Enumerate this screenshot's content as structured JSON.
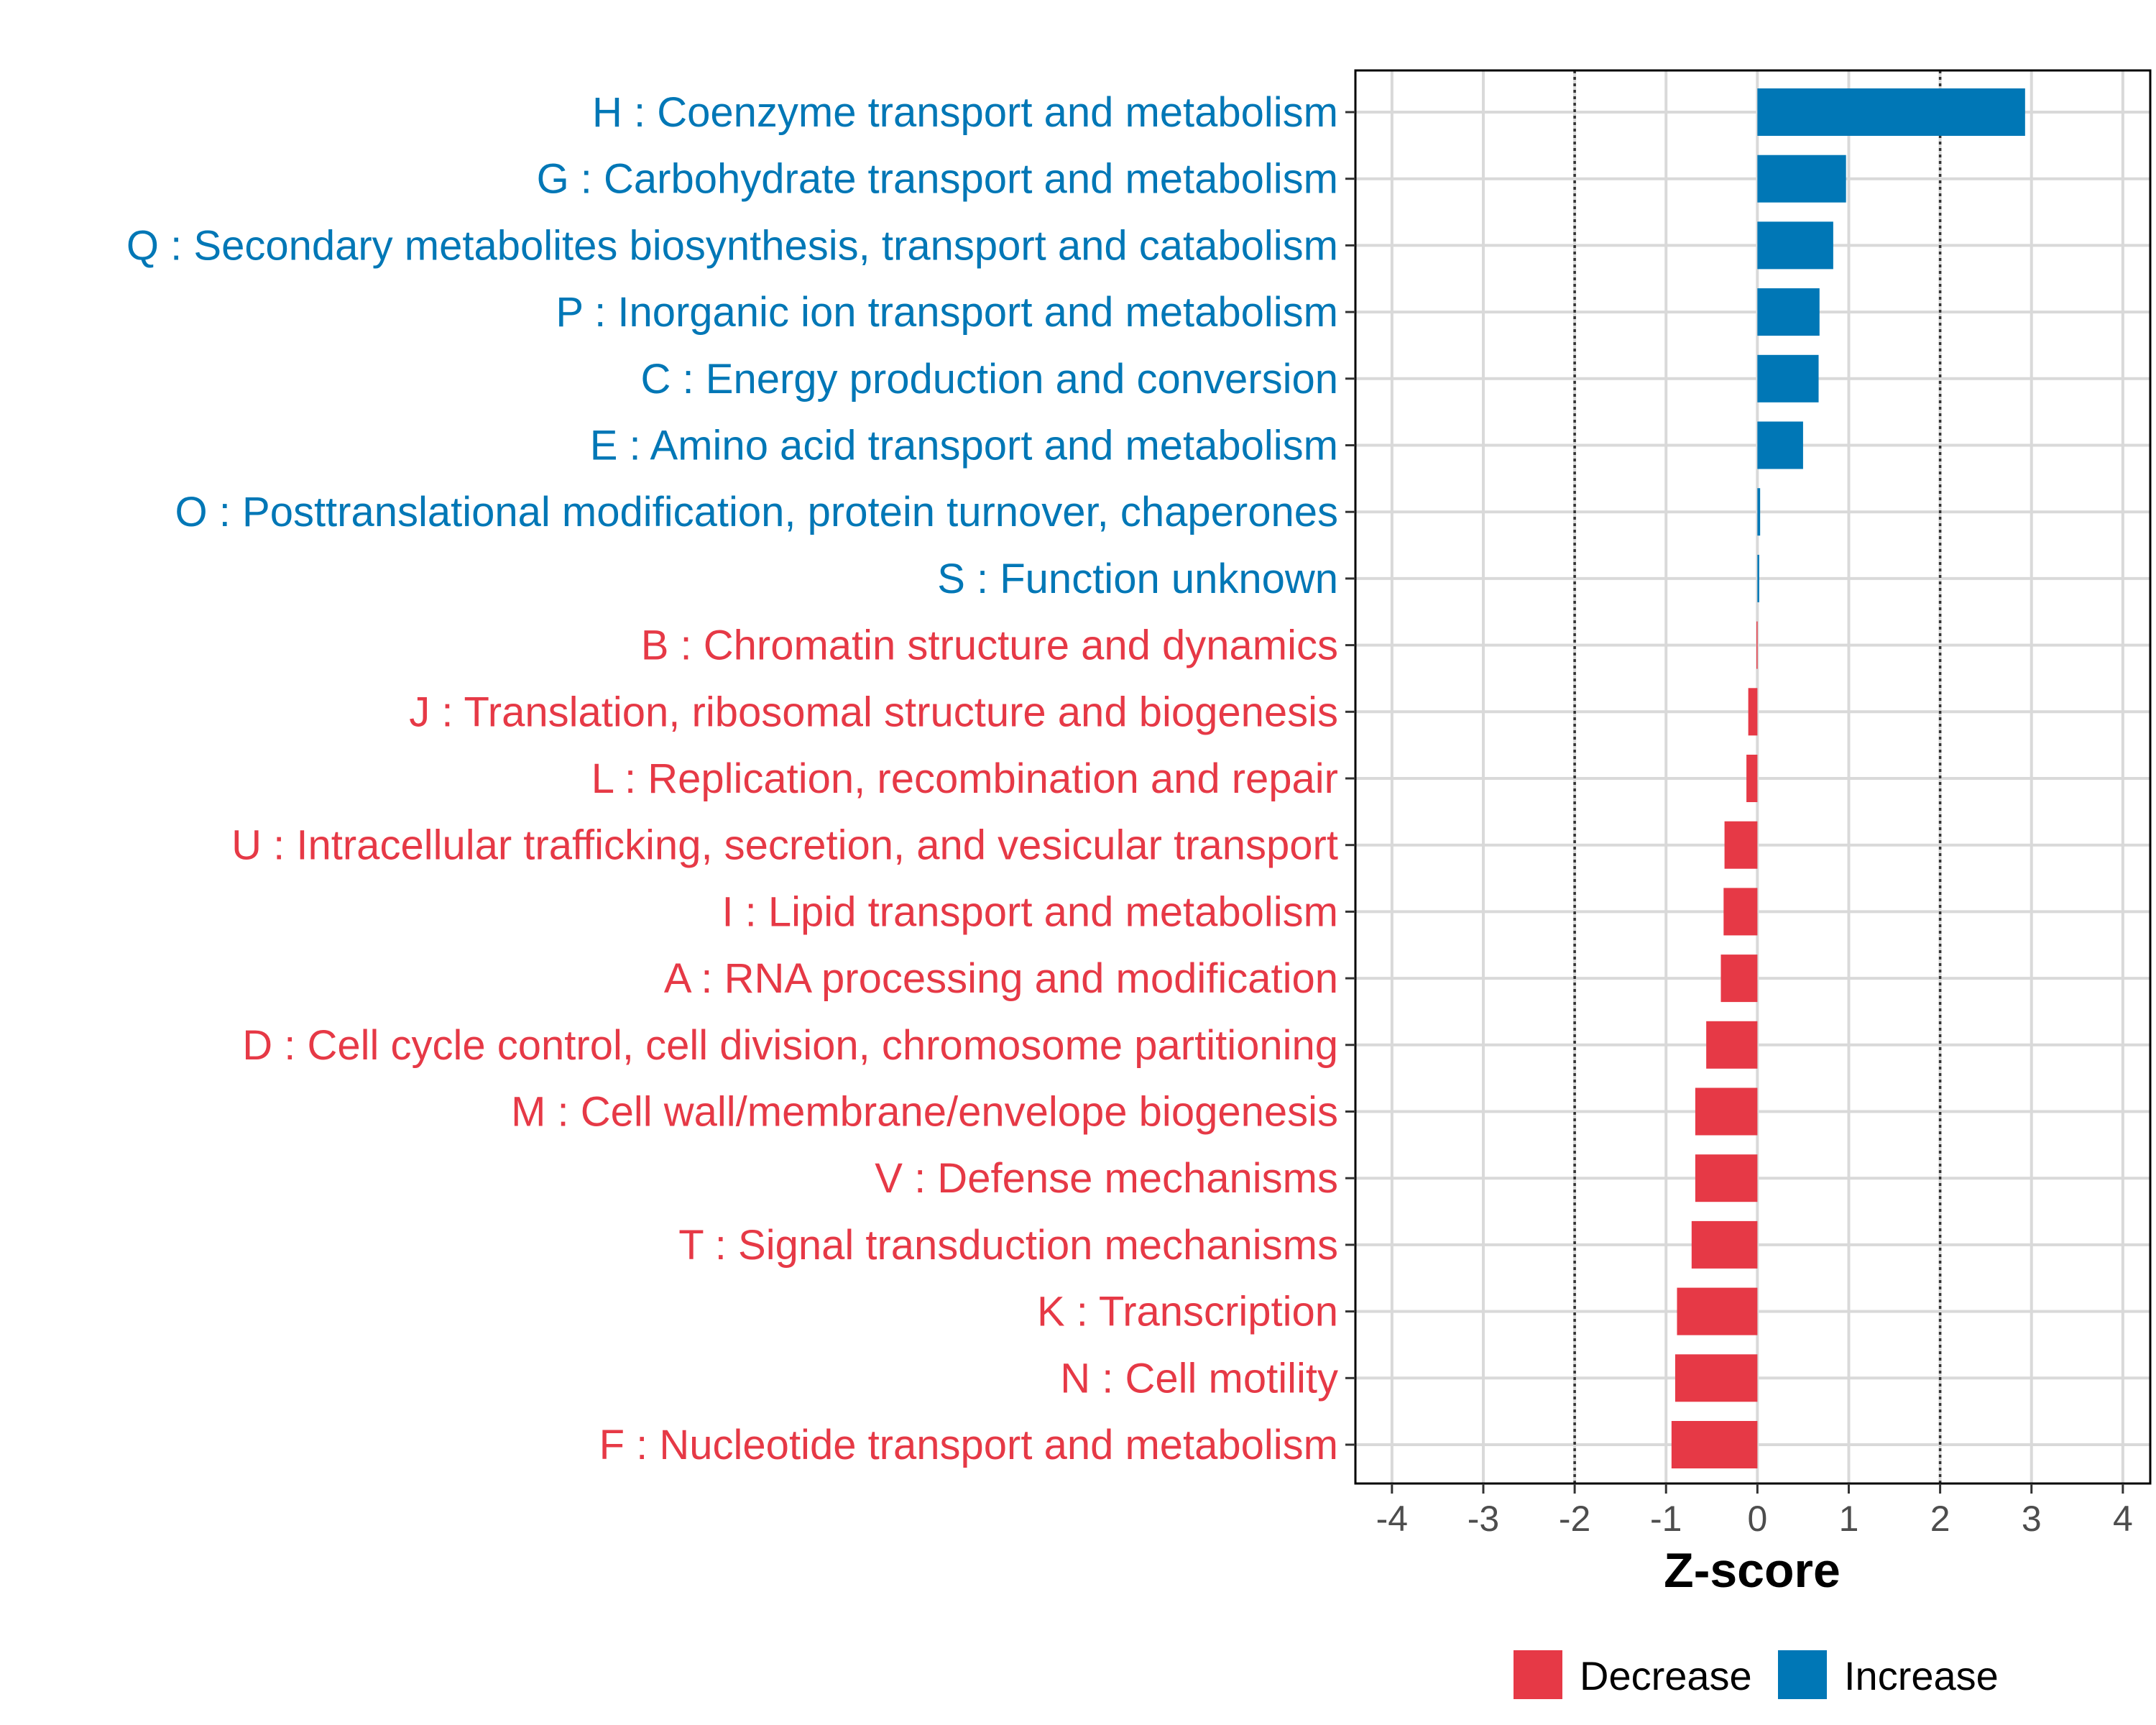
{
  "chart_data": {
    "type": "bar",
    "orientation": "horizontal",
    "title": "",
    "xlabel": "Z-score",
    "ylabel": "",
    "xlim": [
      -4.4,
      4.3
    ],
    "xticks": [
      -4,
      -3,
      -2,
      -1,
      0,
      1,
      2,
      3,
      4
    ],
    "xtick_labels": [
      "-4",
      "-3",
      "-2",
      "-1",
      "0",
      "1",
      "2",
      "3",
      "4"
    ],
    "reference_lines": [
      -2,
      2
    ],
    "grid": true,
    "legend_position": "bottom",
    "colors": {
      "Decrease": "#e63946",
      "Increase": "#0077b6"
    },
    "legend": [
      {
        "name": "Decrease",
        "color": "#e63946"
      },
      {
        "name": "Increase",
        "color": "#0077b6"
      }
    ],
    "categories": [
      "H : Coenzyme transport and metabolism",
      "G : Carbohydrate transport and metabolism",
      "Q : Secondary metabolites biosynthesis, transport and catabolism",
      "P : Inorganic ion transport and metabolism",
      "C : Energy production and conversion",
      "E : Amino acid transport and metabolism",
      "O : Posttranslational modification, protein turnover, chaperones",
      "S : Function unknown",
      "B : Chromatin structure and dynamics",
      "J : Translation, ribosomal structure and biogenesis",
      "L : Replication, recombination and repair",
      "U : Intracellular trafficking, secretion, and vesicular transport",
      "I : Lipid transport and metabolism",
      "A : RNA processing and modification",
      "D : Cell cycle control, cell division, chromosome partitioning",
      "M : Cell wall/membrane/envelope biogenesis",
      "V : Defense mechanisms",
      "T : Signal transduction mechanisms",
      "K : Transcription",
      "N : Cell motility",
      "F : Nucleotide transport and metabolism"
    ],
    "values": [
      2.93,
      0.97,
      0.83,
      0.68,
      0.67,
      0.5,
      0.03,
      0.02,
      -0.01,
      -0.1,
      -0.12,
      -0.36,
      -0.37,
      -0.4,
      -0.56,
      -0.68,
      -0.68,
      -0.72,
      -0.88,
      -0.9,
      -0.94
    ],
    "direction": [
      "Increase",
      "Increase",
      "Increase",
      "Increase",
      "Increase",
      "Increase",
      "Increase",
      "Increase",
      "Decrease",
      "Decrease",
      "Decrease",
      "Decrease",
      "Decrease",
      "Decrease",
      "Decrease",
      "Decrease",
      "Decrease",
      "Decrease",
      "Decrease",
      "Decrease",
      "Decrease"
    ]
  }
}
